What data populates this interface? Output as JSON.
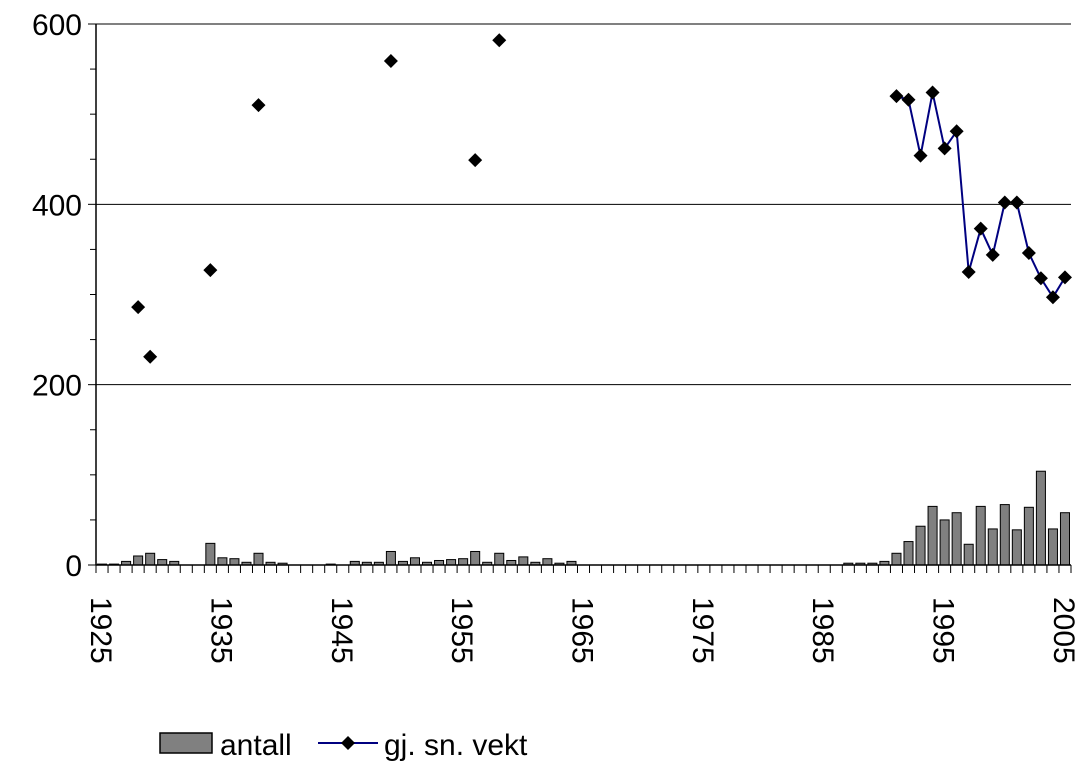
{
  "chart_data": {
    "type": "bar+line",
    "title": "",
    "xlabel": "",
    "ylabel": "",
    "ylim": [
      0,
      600
    ],
    "yticks": [
      0,
      200,
      400,
      600
    ],
    "xlim": [
      1925,
      2006
    ],
    "xticks": [
      1925,
      1935,
      1945,
      1955,
      1965,
      1975,
      1985,
      1995,
      2005
    ],
    "grid": "horizontal",
    "legend_position": "bottom",
    "colors": {
      "bars": "#808080",
      "line": "#000080",
      "markers": "#000000"
    },
    "series": [
      {
        "name": "antall",
        "kind": "bar",
        "points": [
          [
            1925,
            1
          ],
          [
            1926,
            1
          ],
          [
            1927,
            4
          ],
          [
            1928,
            10
          ],
          [
            1929,
            13
          ],
          [
            1930,
            6
          ],
          [
            1931,
            4
          ],
          [
            1934,
            24
          ],
          [
            1935,
            8
          ],
          [
            1936,
            7
          ],
          [
            1937,
            3
          ],
          [
            1938,
            13
          ],
          [
            1939,
            3
          ],
          [
            1940,
            2
          ],
          [
            1944,
            1
          ],
          [
            1946,
            4
          ],
          [
            1947,
            3
          ],
          [
            1948,
            3
          ],
          [
            1949,
            15
          ],
          [
            1950,
            4
          ],
          [
            1951,
            8
          ],
          [
            1952,
            3
          ],
          [
            1953,
            5
          ],
          [
            1954,
            6
          ],
          [
            1955,
            7
          ],
          [
            1956,
            15
          ],
          [
            1957,
            3
          ],
          [
            1958,
            13
          ],
          [
            1959,
            5
          ],
          [
            1960,
            9
          ],
          [
            1961,
            3
          ],
          [
            1962,
            7
          ],
          [
            1963,
            2
          ],
          [
            1964,
            4
          ],
          [
            1987,
            2
          ],
          [
            1988,
            2
          ],
          [
            1989,
            2
          ],
          [
            1990,
            4
          ],
          [
            1991,
            13
          ],
          [
            1992,
            26
          ],
          [
            1993,
            43
          ],
          [
            1994,
            65
          ],
          [
            1995,
            50
          ],
          [
            1996,
            58
          ],
          [
            1997,
            23
          ],
          [
            1998,
            65
          ],
          [
            1999,
            40
          ],
          [
            2000,
            67
          ],
          [
            2001,
            39
          ],
          [
            2002,
            64
          ],
          [
            2003,
            104
          ],
          [
            2004,
            40
          ],
          [
            2005,
            58
          ]
        ]
      },
      {
        "name": "gj. sn. vekt",
        "kind": "line",
        "points": [
          [
            1928,
            286
          ],
          [
            1929,
            231
          ],
          [
            1934,
            327
          ],
          [
            1938,
            510
          ],
          [
            1949,
            559
          ],
          [
            1956,
            449
          ],
          [
            1958,
            582
          ],
          [
            1991,
            520
          ],
          [
            1992,
            516
          ],
          [
            1993,
            454
          ],
          [
            1994,
            524
          ],
          [
            1995,
            462
          ],
          [
            1996,
            481
          ],
          [
            1997,
            325
          ],
          [
            1998,
            373
          ],
          [
            1999,
            344
          ],
          [
            2000,
            402
          ],
          [
            2001,
            402
          ],
          [
            2002,
            346
          ],
          [
            2003,
            318
          ],
          [
            2004,
            297
          ],
          [
            2005,
            319
          ]
        ],
        "connected_from": 1991
      }
    ]
  }
}
